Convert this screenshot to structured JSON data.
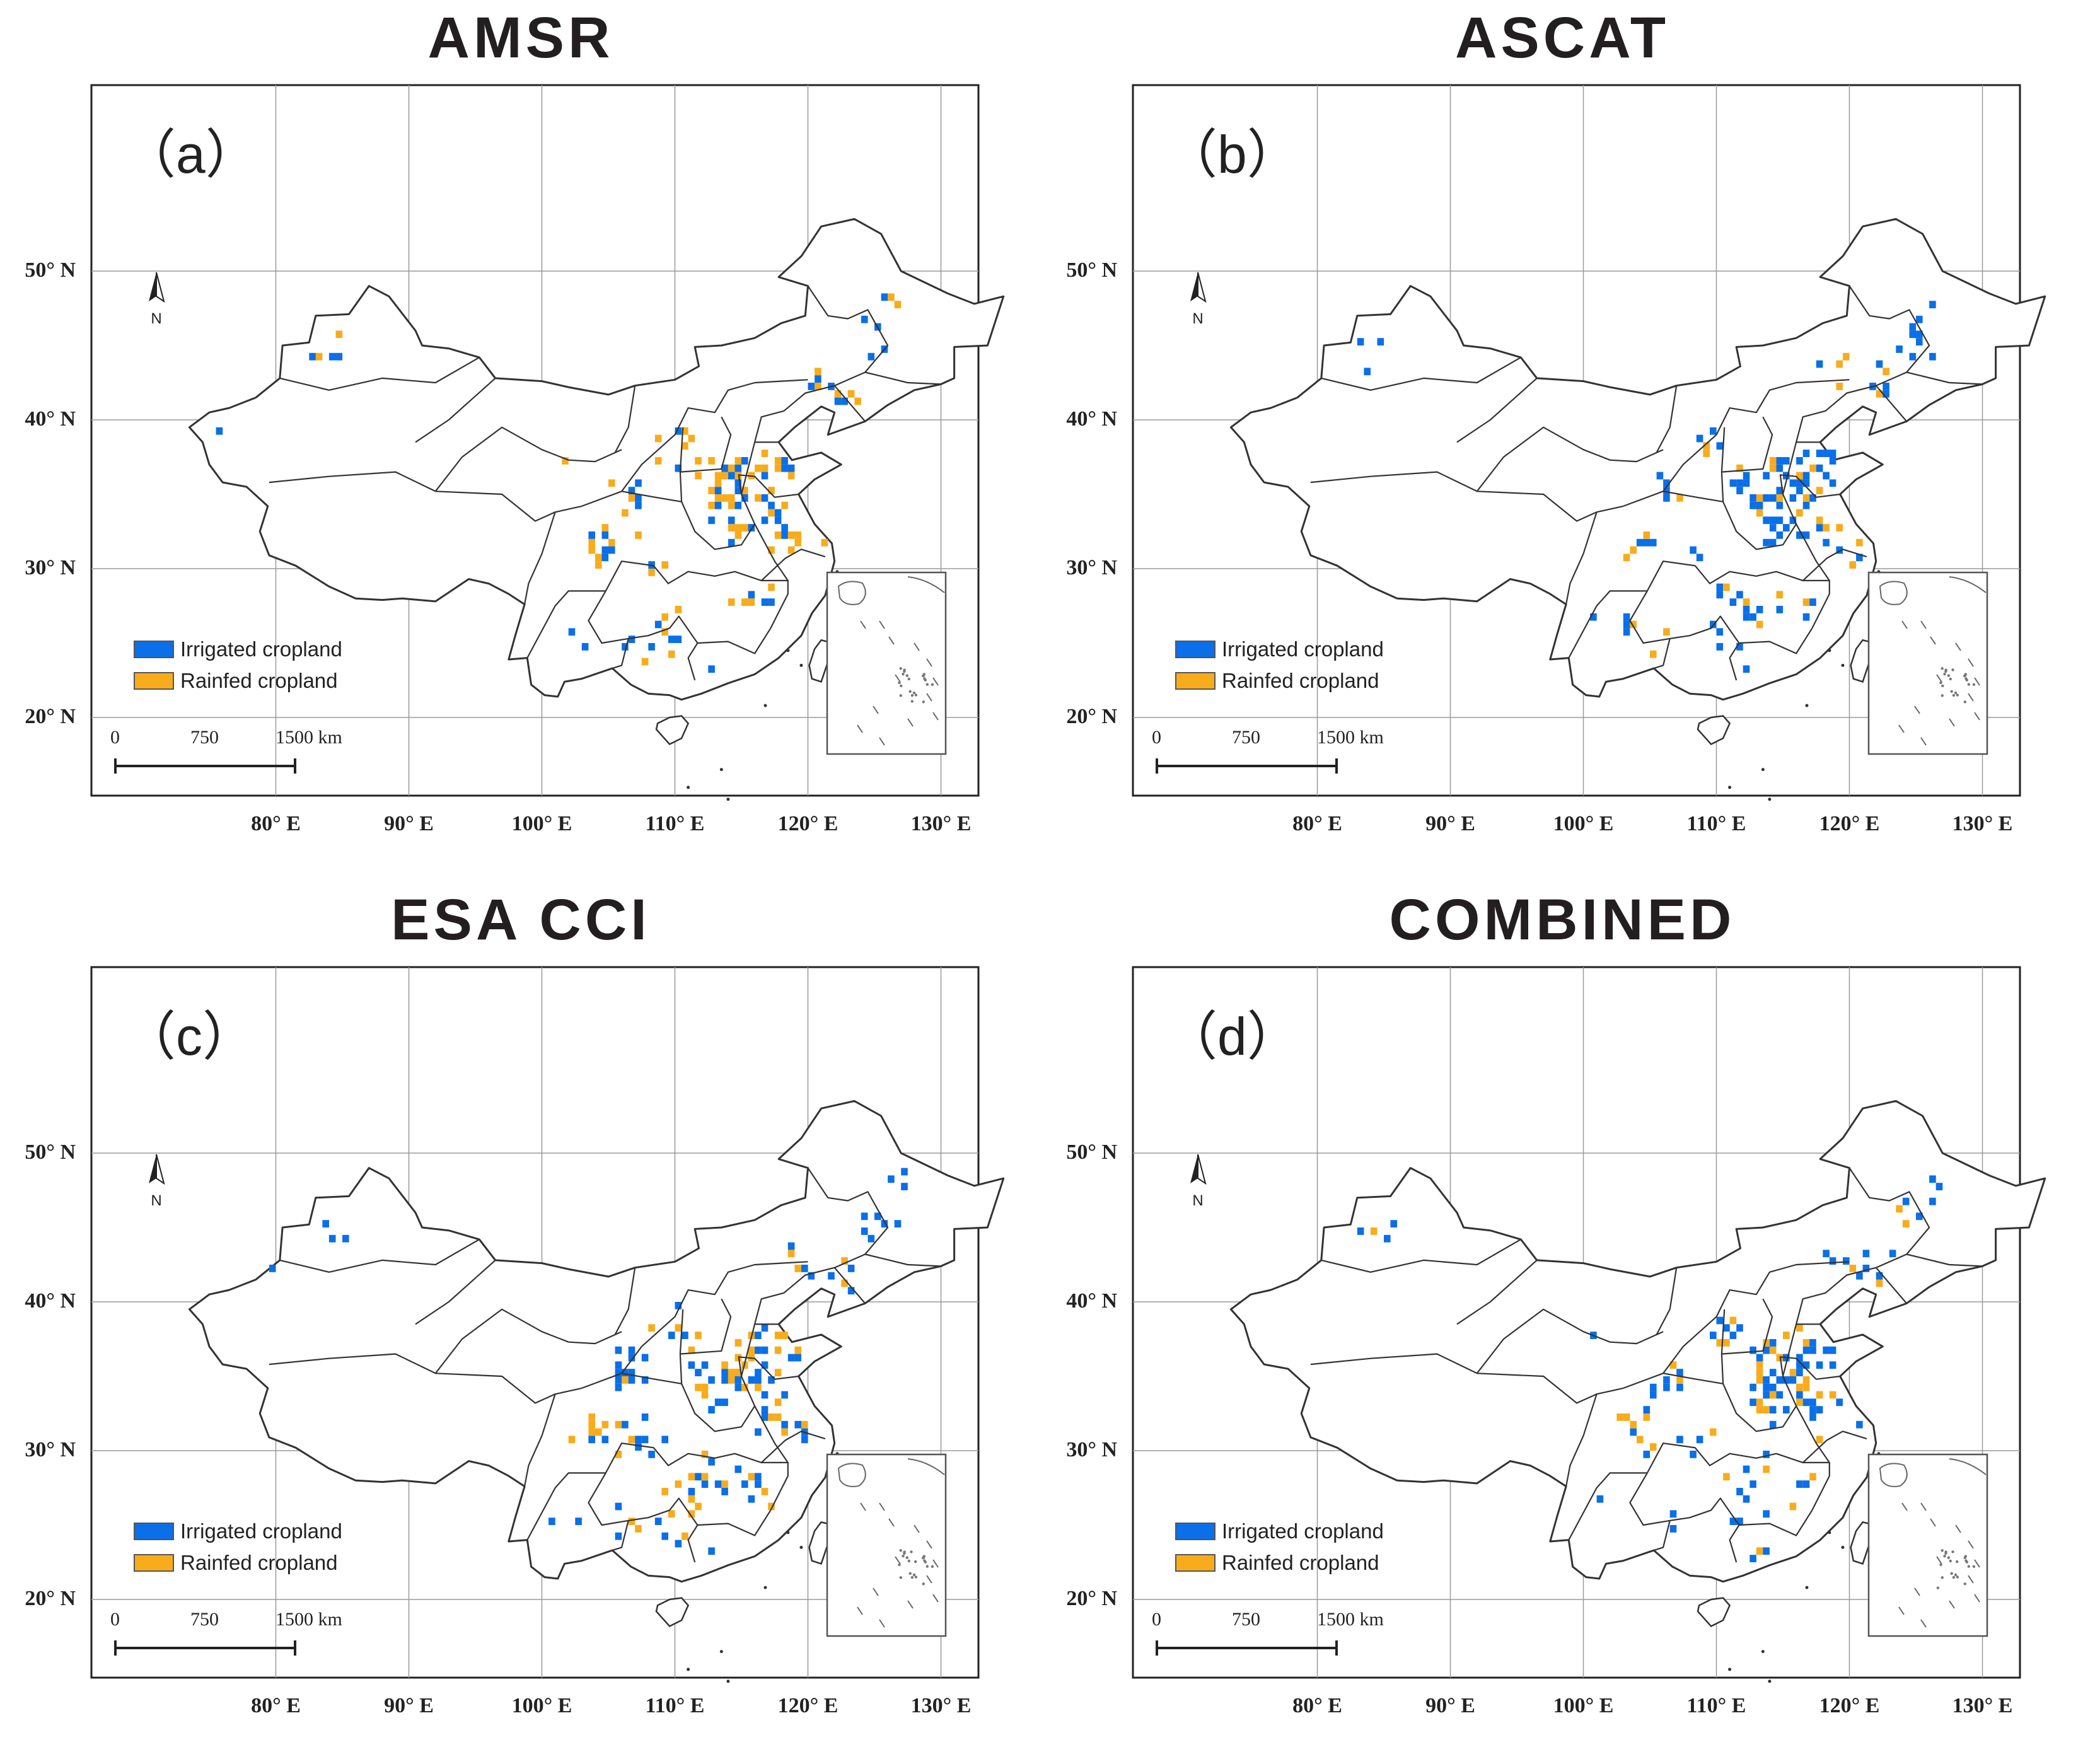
{
  "figure": {
    "lat_labels": [
      "50° N",
      "40° N",
      "30° N",
      "20° N"
    ],
    "lon_labels": [
      "80° E",
      "90° E",
      "100° E",
      "110° E",
      "120° E",
      "130° E"
    ],
    "legend": {
      "irrigated_label": "Irrigated cropland",
      "rainfed_label": "Rainfed cropland",
      "irrigated_color": "#0a6fe8",
      "rainfed_color": "#f8ac1b"
    },
    "scale_bar": {
      "zero": "0",
      "mid": "750",
      "end": "1500",
      "unit": "km"
    },
    "north_arrow_label": "N"
  },
  "panels": [
    {
      "title": "AMSR",
      "letter": "（a）",
      "irrigated_share": 0.55
    },
    {
      "title": "ASCAT",
      "letter": "（b）",
      "irrigated_share": 0.75
    },
    {
      "title": "ESA CCI",
      "letter": "（c）",
      "irrigated_share": 0.62
    },
    {
      "title": "COMBINED",
      "letter": "（d）",
      "irrigated_share": 0.65
    }
  ]
}
